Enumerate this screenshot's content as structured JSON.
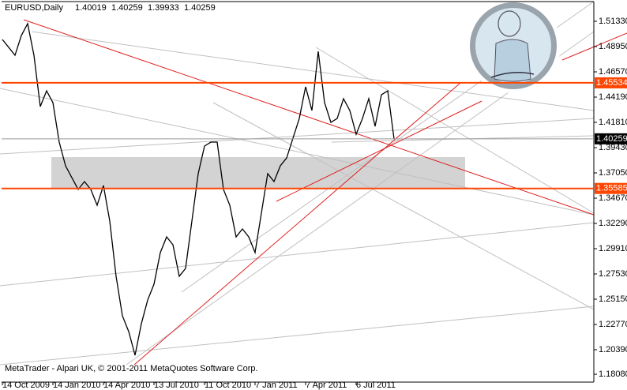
{
  "chart_data": {
    "type": "line",
    "title": "EURUSD,Daily",
    "header_values": [
      1.40019,
      1.40259,
      1.39933,
      1.40259
    ],
    "footer": "MetaTrader - Alpari UK, © 2001-2011 MetaQuotes Software Corp.",
    "categories": [
      "14 Oct 2009",
      null,
      null,
      null,
      null,
      null,
      null,
      null,
      "14 Jan 2010",
      null,
      null,
      null,
      null,
      null,
      null,
      null,
      "14 Apr 2010",
      null,
      null,
      null,
      null,
      null,
      null,
      null,
      "13 Jul 2010",
      null,
      null,
      null,
      null,
      null,
      null,
      null,
      "11 Oct 2010",
      null,
      null,
      null,
      null,
      null,
      null,
      null,
      "7 Jan 2011",
      null,
      null,
      null,
      null,
      null,
      null,
      null,
      "7 Apr 2011",
      null,
      null,
      null,
      null,
      null,
      null,
      null,
      "6 Jul 2011",
      null,
      null,
      null,
      null,
      null,
      null,
      null,
      null,
      null,
      null,
      null,
      null,
      null,
      null,
      null,
      null,
      null,
      null,
      null,
      null,
      null,
      null,
      null,
      null,
      null,
      null,
      null,
      null,
      null,
      null,
      null,
      null,
      null,
      null,
      null,
      null,
      null
    ],
    "values": [
      1.4962,
      1.4888,
      1.4813,
      1.4999,
      1.5111,
      1.4813,
      1.433,
      1.4478,
      1.4367,
      1.3995,
      1.3772,
      1.366,
      1.3549,
      1.3623,
      1.3549,
      1.34,
      1.3586,
      1.3251,
      1.2731,
      1.2359,
      1.221,
      1.1987,
      1.2284,
      1.2507,
      1.2656,
      1.2954,
      1.3102,
      1.3028,
      1.2731,
      1.2805,
      1.3251,
      1.3698,
      1.3958,
      1.3995,
      1.3995,
      1.3549,
      1.34,
      1.3102,
      1.3177,
      1.3102,
      1.2954,
      1.3326,
      1.3698,
      1.3623,
      1.3772,
      1.3846,
      1.4032,
      1.4218,
      1.4516,
      1.4293,
      1.485,
      1.4367,
      1.4181,
      1.4218,
      1.4404,
      1.4293,
      1.4069,
      1.4218,
      1.4404,
      1.4144,
      1.4441,
      1.4478,
      1.4026,
      null,
      null,
      null,
      null,
      null,
      null,
      null,
      null,
      null,
      null,
      null,
      null,
      null,
      null,
      null,
      null,
      null,
      null,
      null,
      null,
      null,
      null,
      null,
      null,
      null,
      null,
      null,
      null,
      null,
      null,
      null
    ],
    "color": "#000000",
    "ylim": [
      1.1734,
      1.5319
    ],
    "yticks": [
      {
        "value": 1.5133,
        "label": "1.51330"
      },
      {
        "value": 1.4895,
        "label": "1.48950"
      },
      {
        "value": 1.4657,
        "label": "1.46570"
      },
      {
        "value": 1.4419,
        "label": "1.44190"
      },
      {
        "value": 1.4181,
        "label": "1.41810"
      },
      {
        "value": 1.3943,
        "label": "1.39430"
      },
      {
        "value": 1.3705,
        "label": "1.37050"
      },
      {
        "value": 1.3467,
        "label": "1.34670"
      },
      {
        "value": 1.3229,
        "label": "1.32290"
      },
      {
        "value": 1.2991,
        "label": "1.29910"
      },
      {
        "value": 1.2753,
        "label": "1.27530"
      },
      {
        "value": 1.2515,
        "label": "1.25150"
      },
      {
        "value": 1.2277,
        "label": "1.22770"
      },
      {
        "value": 1.2039,
        "label": "1.20390"
      },
      {
        "value": 1.1808,
        "label": "1.18080"
      }
    ],
    "levels": [
      {
        "value": 1.45534,
        "color": "#ff4500"
      },
      {
        "value": 1.40259,
        "color": "#000000"
      },
      {
        "value": 1.35585,
        "color": "#ff4500"
      }
    ]
  }
}
